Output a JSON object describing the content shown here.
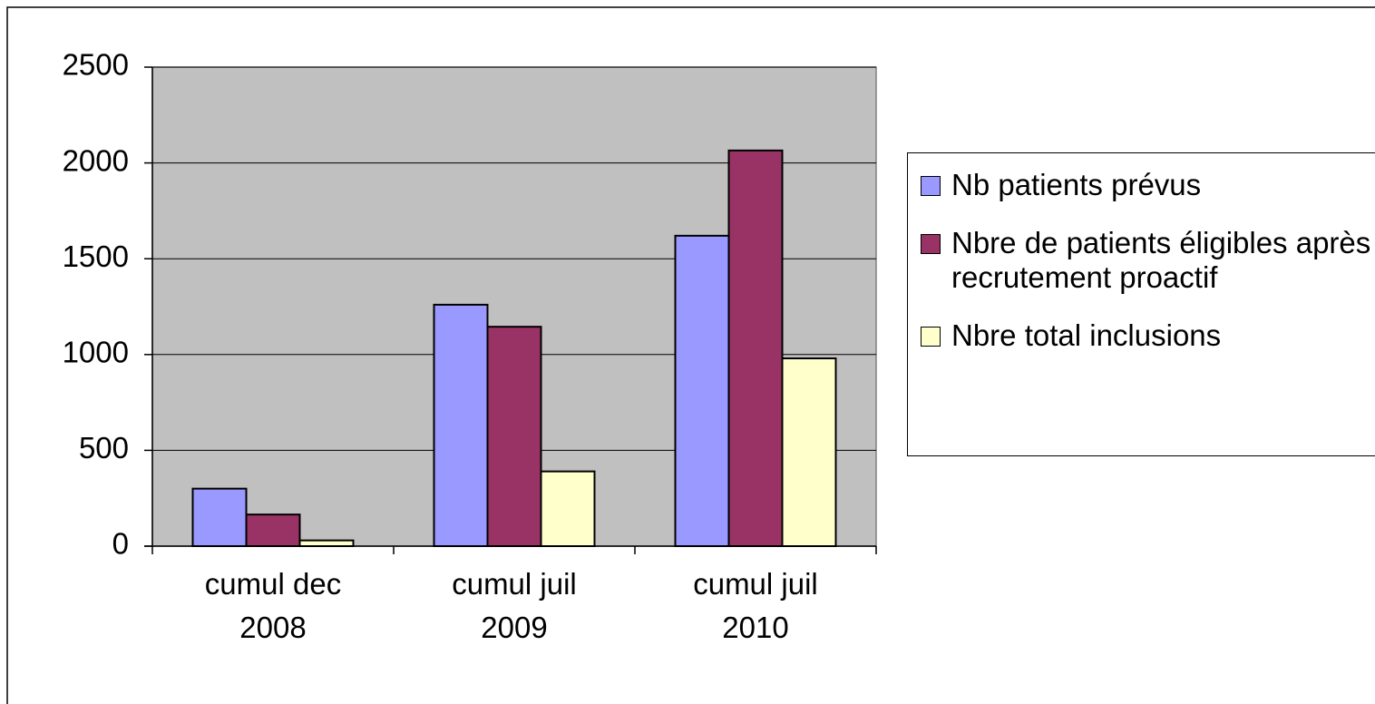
{
  "chart_data": {
    "type": "bar",
    "categories": [
      "cumul dec 2008",
      "cumul juil 2009",
      "cumul juil 2010"
    ],
    "series": [
      {
        "name": "Nb patients prévus",
        "color": "#9999ff",
        "values": [
          300,
          1260,
          1620
        ]
      },
      {
        "name": "Nbre de patients éligibles après recrutement proactif",
        "color": "#993366",
        "values": [
          165,
          1145,
          2065
        ]
      },
      {
        "name": "Nbre total inclusions",
        "color": "#ffffcc",
        "values": [
          30,
          390,
          980
        ]
      }
    ],
    "ylim": [
      0,
      2500
    ],
    "yticks": [
      0,
      500,
      1000,
      1500,
      2000,
      2500
    ],
    "grid": true,
    "legend": "right"
  }
}
